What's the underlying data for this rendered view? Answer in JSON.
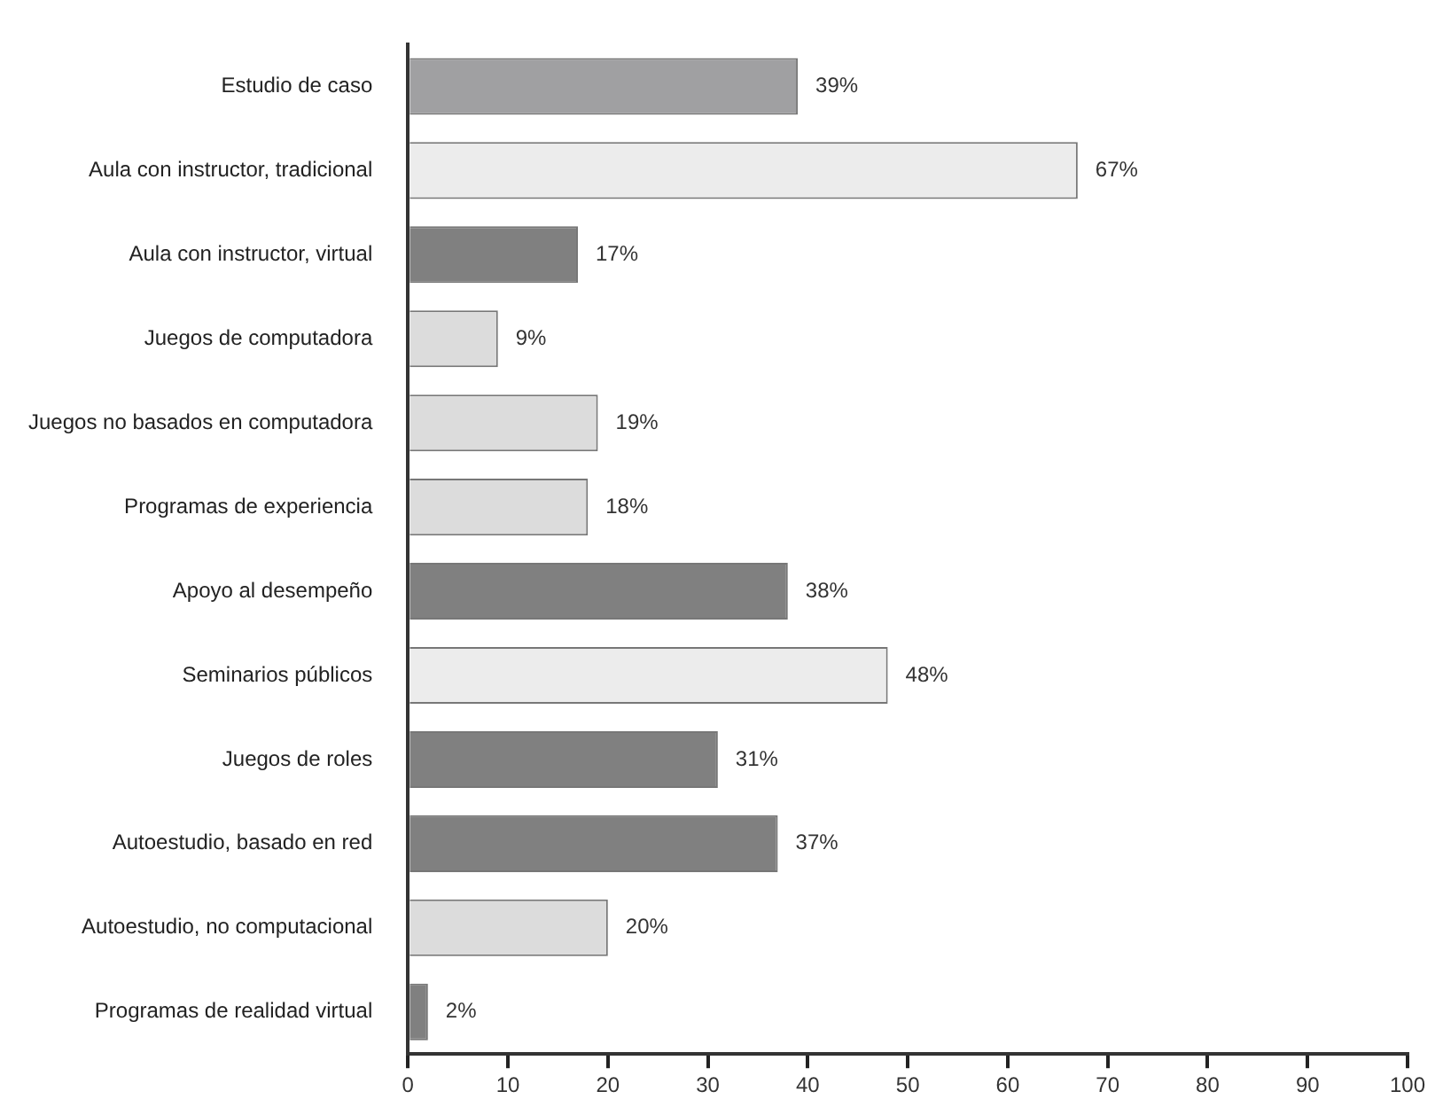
{
  "chart_data": {
    "type": "bar",
    "orientation": "horizontal",
    "categories": [
      "Estudio de caso",
      "Aula con instructor, tradicional",
      "Aula con instructor, virtual",
      "Juegos de computadora",
      "Juegos no basados en computadora",
      "Programas de experiencia",
      "Apoyo al desempeño",
      "Seminarios públicos",
      "Juegos de roles",
      "Autoestudio, basado en red",
      "Autoestudio, no computacional",
      "Programas de realidad virtual"
    ],
    "values": [
      39,
      67,
      17,
      9,
      19,
      18,
      38,
      48,
      31,
      37,
      20,
      2
    ],
    "value_labels": [
      "39%",
      "67%",
      "17%",
      "9%",
      "19%",
      "18%",
      "38%",
      "48%",
      "31%",
      "37%",
      "20%",
      "2%"
    ],
    "colors": [
      "#a0a0a2",
      "#ececec",
      "#808080",
      "#dcdcdc",
      "#dcdcdc",
      "#dcdcdc",
      "#808080",
      "#ececec",
      "#808080",
      "#808080",
      "#dcdcdc",
      "#808080"
    ],
    "xlim": [
      0,
      100
    ],
    "xticks": [
      0,
      10,
      20,
      30,
      40,
      50,
      60,
      70,
      80,
      90,
      100
    ],
    "grid": false,
    "legend": false
  }
}
